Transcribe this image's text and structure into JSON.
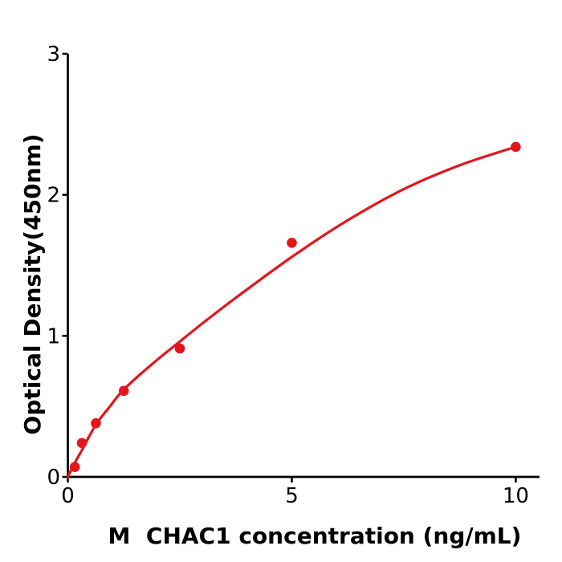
{
  "figure": {
    "background": "#ffffff"
  },
  "chart_data": {
    "type": "scatter",
    "subtype": "standard-curve-with-fit",
    "title": "",
    "xlabel": "M  CHAC1 concentration (ng/mL)",
    "ylabel": "Optical Density(450nm)",
    "xlim": [
      0,
      10.53
    ],
    "ylim": [
      0,
      3
    ],
    "x_ticks": [
      0,
      5,
      10
    ],
    "y_ticks": [
      0,
      1,
      2,
      3
    ],
    "grid": false,
    "legend": "none",
    "points": [
      {
        "x": 0.156,
        "y": 0.07
      },
      {
        "x": 0.313,
        "y": 0.24
      },
      {
        "x": 0.625,
        "y": 0.38
      },
      {
        "x": 1.25,
        "y": 0.61
      },
      {
        "x": 2.5,
        "y": 0.91
      },
      {
        "x": 5,
        "y": 1.66
      },
      {
        "x": 10,
        "y": 2.34
      }
    ],
    "fit_curve": [
      [
        0,
        0
      ],
      [
        0.156,
        0.1
      ],
      [
        0.313,
        0.19
      ],
      [
        0.625,
        0.37
      ],
      [
        0.94,
        0.5
      ],
      [
        1.25,
        0.62
      ],
      [
        1.88,
        0.8
      ],
      [
        2.5,
        0.96
      ],
      [
        3.13,
        1.12
      ],
      [
        3.75,
        1.27
      ],
      [
        5,
        1.56
      ],
      [
        6.25,
        1.82
      ],
      [
        7.5,
        2.04
      ],
      [
        8.75,
        2.21
      ],
      [
        10,
        2.34
      ]
    ],
    "point_color": "#e4161c",
    "line_color": "#e4161c",
    "axis_color": "#000000",
    "text_color": "#000000"
  }
}
